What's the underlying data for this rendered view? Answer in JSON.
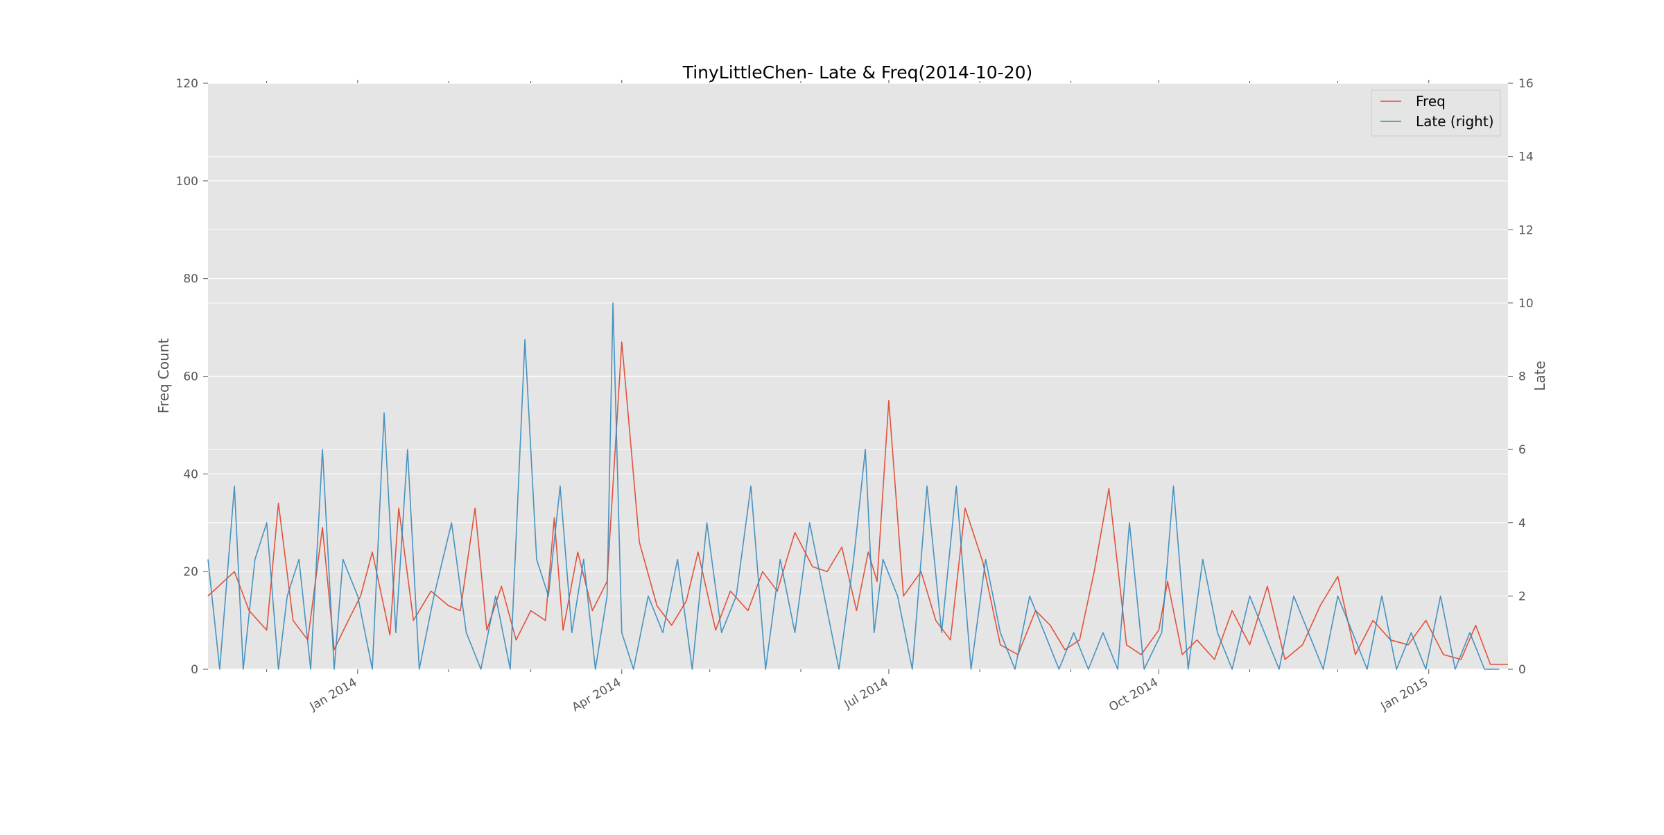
{
  "chart_data": {
    "type": "line",
    "title": "TinyLittleChen- Late & Freq(2014-10-20)",
    "ylabel": "Freq Count",
    "y2label": "Late",
    "xlabel": "",
    "ylim": [
      0,
      120
    ],
    "y2lim": [
      0,
      16
    ],
    "xlim": [
      "2013-11-11",
      "2015-01-28"
    ],
    "yticks": [
      0,
      20,
      40,
      60,
      80,
      100,
      120
    ],
    "y2ticks": [
      0,
      2,
      4,
      6,
      8,
      10,
      12,
      14,
      16
    ],
    "xtick_dates": [
      "2014-01-01",
      "2014-04-01",
      "2014-07-01",
      "2014-10-01",
      "2015-01-01"
    ],
    "xtick_labels": [
      "Jan 2014",
      "Apr 2014",
      "Jul 2014",
      "Oct 2014",
      "Jan 2015"
    ],
    "grid": true,
    "legend_position": "top-right",
    "legend_entries": [
      "Freq",
      "Late (right)"
    ],
    "colors": {
      "freq": "#E24A33",
      "late": "#348ABD",
      "plot_bg": "#E5E5E5",
      "grid": "#FFFFFF"
    },
    "series": [
      {
        "name": "Freq",
        "axis": "left",
        "x": [
          "2013-11-11",
          "2013-11-20",
          "2013-11-25",
          "2013-12-01",
          "2013-12-05",
          "2013-12-10",
          "2013-12-15",
          "2013-12-20",
          "2013-12-24",
          "2013-12-28",
          "2014-01-02",
          "2014-01-06",
          "2014-01-12",
          "2014-01-15",
          "2014-01-20",
          "2014-01-26",
          "2014-02-01",
          "2014-02-05",
          "2014-02-10",
          "2014-02-14",
          "2014-02-19",
          "2014-02-24",
          "2014-03-01",
          "2014-03-06",
          "2014-03-09",
          "2014-03-12",
          "2014-03-17",
          "2014-03-22",
          "2014-03-27",
          "2014-04-01",
          "2014-04-07",
          "2014-04-13",
          "2014-04-18",
          "2014-04-23",
          "2014-04-27",
          "2014-05-03",
          "2014-05-08",
          "2014-05-14",
          "2014-05-19",
          "2014-05-24",
          "2014-05-30",
          "2014-06-05",
          "2014-06-10",
          "2014-06-15",
          "2014-06-20",
          "2014-06-24",
          "2014-06-27",
          "2014-07-01",
          "2014-07-06",
          "2014-07-12",
          "2014-07-17",
          "2014-07-22",
          "2014-07-27",
          "2014-08-02",
          "2014-08-08",
          "2014-08-14",
          "2014-08-20",
          "2014-08-25",
          "2014-08-30",
          "2014-09-04",
          "2014-09-09",
          "2014-09-14",
          "2014-09-20",
          "2014-09-25",
          "2014-10-01",
          "2014-10-04",
          "2014-10-09",
          "2014-10-14",
          "2014-10-20",
          "2014-10-26",
          "2014-11-01",
          "2014-11-07",
          "2014-11-13",
          "2014-11-19",
          "2014-11-25",
          "2014-12-01",
          "2014-12-07",
          "2014-12-13",
          "2014-12-19",
          "2014-12-25",
          "2014-12-31",
          "2015-01-06",
          "2015-01-12",
          "2015-01-17",
          "2015-01-22",
          "2015-01-28"
        ],
        "values": [
          15,
          20,
          12,
          8,
          34,
          10,
          6,
          29,
          4,
          9,
          15,
          24,
          7,
          33,
          10,
          16,
          13,
          12,
          33,
          8,
          17,
          6,
          12,
          10,
          31,
          8,
          24,
          12,
          18,
          67,
          26,
          13,
          9,
          14,
          24,
          8,
          16,
          12,
          20,
          16,
          28,
          21,
          20,
          25,
          12,
          24,
          18,
          55,
          15,
          20,
          10,
          6,
          33,
          22,
          5,
          3,
          12,
          9,
          4,
          6,
          20,
          37,
          5,
          3,
          8,
          18,
          3,
          6,
          2,
          12,
          5,
          17,
          2,
          5,
          13,
          19,
          3,
          10,
          6,
          5,
          10,
          3,
          2,
          9,
          1,
          1
        ]
      },
      {
        "name": "Late (right)",
        "axis": "right",
        "x": [
          "2013-11-11",
          "2013-11-15",
          "2013-11-20",
          "2013-11-23",
          "2013-11-27",
          "2013-12-01",
          "2013-12-05",
          "2013-12-08",
          "2013-12-12",
          "2013-12-16",
          "2013-12-20",
          "2013-12-24",
          "2013-12-27",
          "2014-01-01",
          "2014-01-06",
          "2014-01-10",
          "2014-01-14",
          "2014-01-18",
          "2014-01-22",
          "2014-01-27",
          "2014-02-02",
          "2014-02-07",
          "2014-02-12",
          "2014-02-17",
          "2014-02-22",
          "2014-02-27",
          "2014-03-03",
          "2014-03-07",
          "2014-03-11",
          "2014-03-15",
          "2014-03-19",
          "2014-03-23",
          "2014-03-27",
          "2014-03-29",
          "2014-04-01",
          "2014-04-05",
          "2014-04-10",
          "2014-04-15",
          "2014-04-20",
          "2014-04-25",
          "2014-04-30",
          "2014-05-05",
          "2014-05-10",
          "2014-05-15",
          "2014-05-20",
          "2014-05-25",
          "2014-05-30",
          "2014-06-04",
          "2014-06-09",
          "2014-06-14",
          "2014-06-19",
          "2014-06-23",
          "2014-06-26",
          "2014-06-29",
          "2014-07-04",
          "2014-07-09",
          "2014-07-14",
          "2014-07-19",
          "2014-07-24",
          "2014-07-29",
          "2014-08-03",
          "2014-08-08",
          "2014-08-13",
          "2014-08-18",
          "2014-08-23",
          "2014-08-28",
          "2014-09-02",
          "2014-09-07",
          "2014-09-12",
          "2014-09-17",
          "2014-09-21",
          "2014-09-26",
          "2014-10-02",
          "2014-10-06",
          "2014-10-11",
          "2014-10-16",
          "2014-10-21",
          "2014-10-26",
          "2014-11-01",
          "2014-11-06",
          "2014-11-11",
          "2014-11-16",
          "2014-11-21",
          "2014-11-26",
          "2014-12-01",
          "2014-12-06",
          "2014-12-11",
          "2014-12-16",
          "2014-12-21",
          "2014-12-26",
          "2014-12-31",
          "2015-01-05",
          "2015-01-10",
          "2015-01-15",
          "2015-01-20",
          "2015-01-25"
        ],
        "values": [
          3,
          0,
          5,
          0,
          3,
          4,
          0,
          2,
          3,
          0,
          6,
          0,
          3,
          2,
          0,
          7,
          1,
          6,
          0,
          2,
          4,
          1,
          0,
          2,
          0,
          9,
          3,
          2,
          5,
          1,
          3,
          0,
          2,
          10,
          1,
          0,
          2,
          1,
          3,
          0,
          4,
          1,
          2,
          5,
          0,
          3,
          1,
          4,
          2,
          0,
          3,
          6,
          1,
          3,
          2,
          0,
          5,
          1,
          5,
          0,
          3,
          1,
          0,
          2,
          1,
          0,
          1,
          0,
          1,
          0,
          4,
          0,
          1,
          5,
          0,
          3,
          1,
          0,
          2,
          1,
          0,
          2,
          1,
          0,
          2,
          1,
          0,
          2,
          0,
          1,
          0,
          2,
          0,
          1,
          0,
          0
        ]
      }
    ]
  }
}
